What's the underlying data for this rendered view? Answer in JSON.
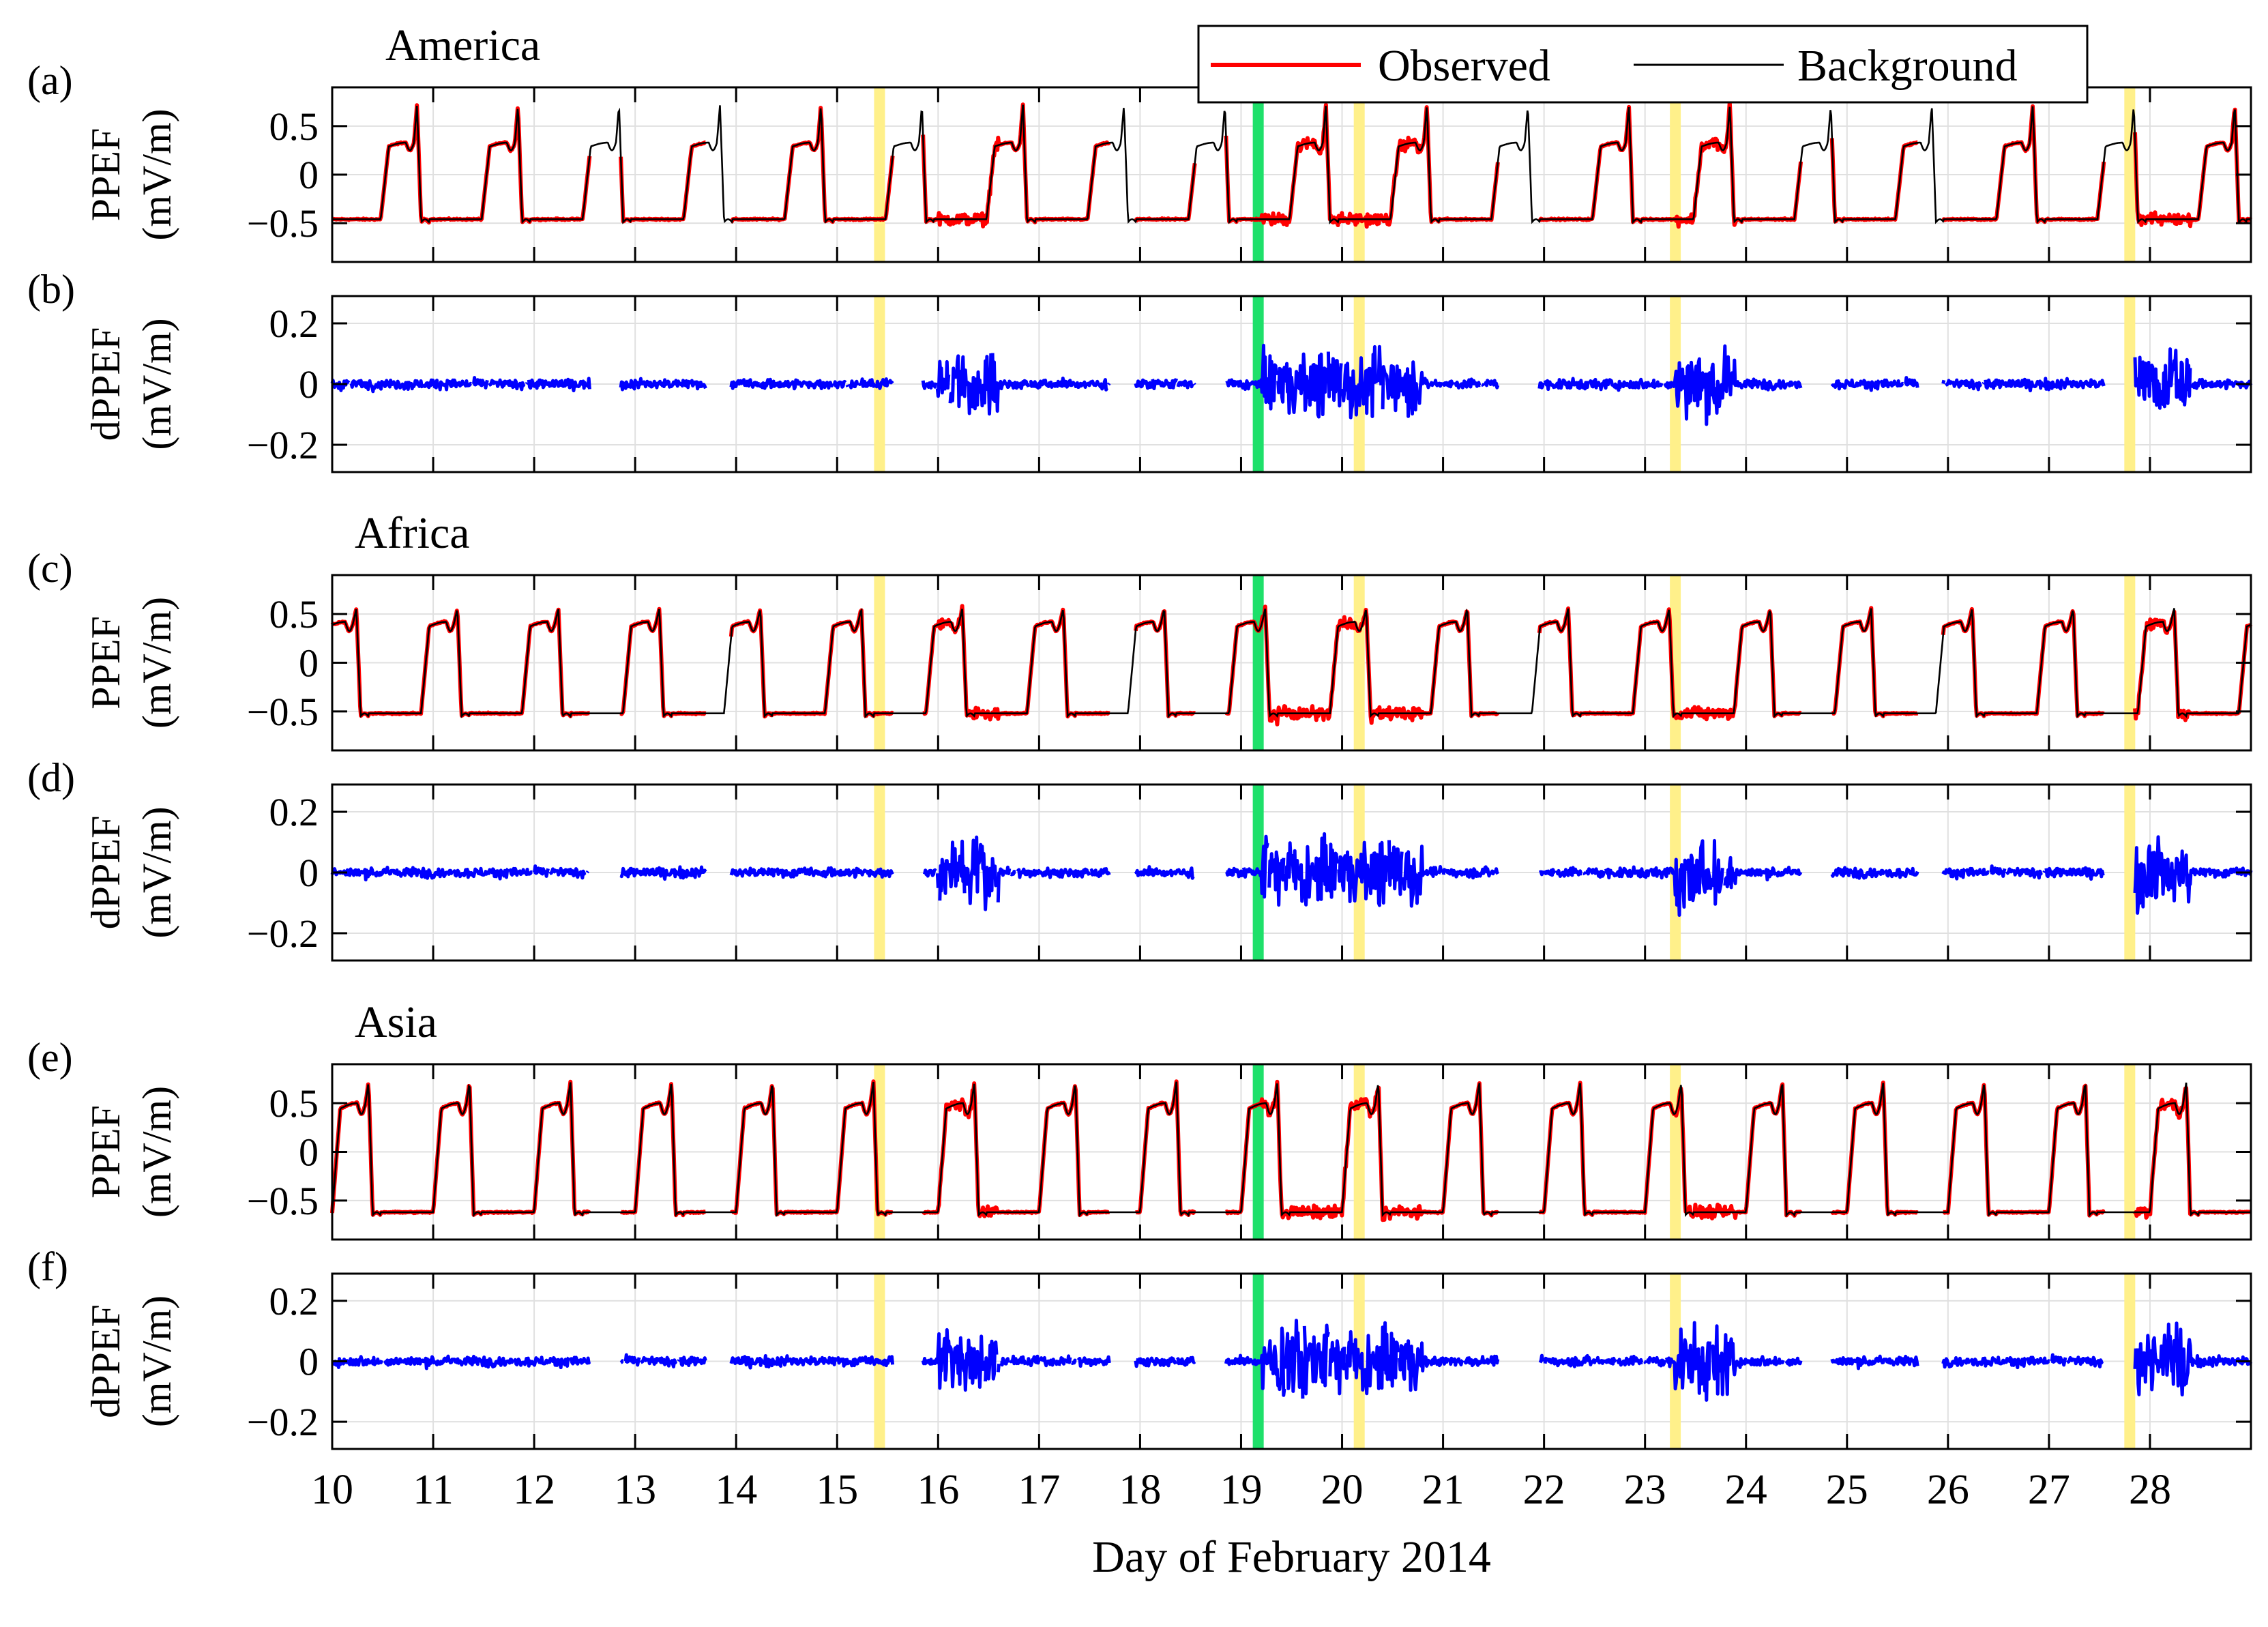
{
  "chart_data": {
    "type": "line",
    "xlabel": "Day of February 2014",
    "xlim": [
      10,
      29
    ],
    "xticks": [
      10,
      11,
      12,
      13,
      14,
      15,
      16,
      17,
      18,
      19,
      20,
      21,
      22,
      23,
      24,
      25,
      26,
      27,
      28
    ],
    "legend": {
      "position": "top-right",
      "entries": [
        {
          "label": "Observed",
          "color": "#ff0000"
        },
        {
          "label": "Background",
          "color": "#000000"
        }
      ]
    },
    "yellow_bands": [
      15.42,
      20.17,
      23.3,
      27.8
    ],
    "green_bands": [
      19.17
    ],
    "panels": [
      {
        "id": "a",
        "tag": "(a)",
        "region": "America",
        "kind": "ppef",
        "ylabel": [
          "PPEF",
          "(mV/m)"
        ],
        "ylim": [
          -0.9,
          0.9
        ],
        "yticks": [
          0.5,
          0,
          -0.5
        ],
        "ytick_labels": [
          "0.5",
          "0",
          "−0.5"
        ],
        "phase": 0.52,
        "hi": 0.33,
        "lo": -0.46,
        "peak": 0.72
      },
      {
        "id": "b",
        "tag": "(b)",
        "kind": "dppef",
        "ylabel": [
          "dPPEF",
          "(mV/m)"
        ],
        "ylim": [
          -0.29,
          0.29
        ],
        "yticks": [
          0.2,
          0,
          -0.2
        ],
        "ytick_labels": [
          "0.2",
          "0",
          "−0.2"
        ]
      },
      {
        "id": "c",
        "tag": "(c)",
        "region": "Africa",
        "kind": "ppef",
        "ylabel": [
          "PPEF",
          "(mV/m)"
        ],
        "ylim": [
          -0.9,
          0.9
        ],
        "yticks": [
          0.5,
          0,
          -0.5
        ],
        "ytick_labels": [
          "0.5",
          "0",
          "−0.5"
        ],
        "phase": 0.12,
        "hi": 0.42,
        "lo": -0.52,
        "peak": 0.56
      },
      {
        "id": "d",
        "tag": "(d)",
        "kind": "dppef",
        "ylabel": [
          "dPPEF",
          "(mV/m)"
        ],
        "ylim": [
          -0.29,
          0.29
        ],
        "yticks": [
          0.2,
          0,
          -0.2
        ],
        "ytick_labels": [
          "0.2",
          "0",
          "−0.2"
        ]
      },
      {
        "id": "e",
        "tag": "(e)",
        "region": "Asia",
        "kind": "ppef",
        "ylabel": [
          "PPEF",
          "(mV/m)"
        ],
        "ylim": [
          -0.9,
          0.9
        ],
        "yticks": [
          0.5,
          0,
          -0.5
        ],
        "ytick_labels": [
          "0.5",
          "0",
          "−0.5"
        ],
        "phase": 0.0,
        "hi": 0.5,
        "lo": -0.62,
        "peak": 0.72
      },
      {
        "id": "f",
        "tag": "(f)",
        "kind": "dppef",
        "ylabel": [
          "dPPEF",
          "(mV/m)"
        ],
        "ylim": [
          -0.29,
          0.29
        ],
        "yticks": [
          0.2,
          0,
          -0.2
        ],
        "ytick_labels": [
          "0.2",
          "0",
          "−0.2"
        ]
      }
    ],
    "disturbed_days": [
      [
        16,
        16.6
      ],
      [
        19.2,
        20.8
      ],
      [
        23.3,
        23.9
      ],
      [
        27.6,
        28.4
      ]
    ]
  }
}
